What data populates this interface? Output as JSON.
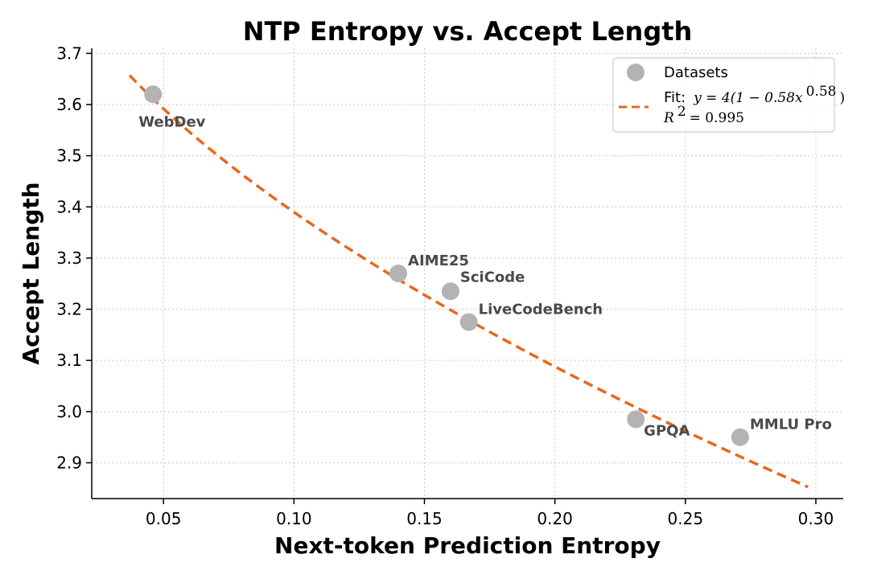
{
  "chart_data": {
    "type": "scatter",
    "title": "NTP Entropy vs. Accept Length",
    "xlabel": "Next-token Prediction Entropy",
    "ylabel": "Accept Length",
    "xlim": [
      0.0225,
      0.3105
    ],
    "ylim": [
      2.83,
      3.71
    ],
    "xticks": [
      "0.05",
      "0.10",
      "0.15",
      "0.20",
      "0.25",
      "0.30"
    ],
    "yticks": [
      "2.9",
      "3.0",
      "3.1",
      "3.2",
      "3.3",
      "3.4",
      "3.5",
      "3.6",
      "3.7"
    ],
    "grid": true,
    "legend_position": "top-right",
    "series": [
      {
        "name": "Datasets",
        "color": "#b3b3b3",
        "points": [
          {
            "label": "WebDev",
            "x": 0.046,
            "y": 3.62
          },
          {
            "label": "AIME25",
            "x": 0.14,
            "y": 3.27
          },
          {
            "label": "SciCode",
            "x": 0.16,
            "y": 3.235
          },
          {
            "label": "LiveCodeBench",
            "x": 0.167,
            "y": 3.175
          },
          {
            "label": "GPQA",
            "x": 0.231,
            "y": 2.985
          },
          {
            "label": "MMLU Pro",
            "x": 0.271,
            "y": 2.95
          }
        ]
      }
    ],
    "fit": {
      "name": "Fit:",
      "equation": "y = 4(1 − 0.58x",
      "exponent": "0.58",
      "close": ")",
      "r2_text": "R",
      "r2_sup": "2",
      "r2_value": " = 0.995",
      "color": "#e8671b",
      "a": 4,
      "b": 0.58,
      "c": 0.58,
      "x_range": [
        0.037,
        0.297
      ]
    }
  }
}
